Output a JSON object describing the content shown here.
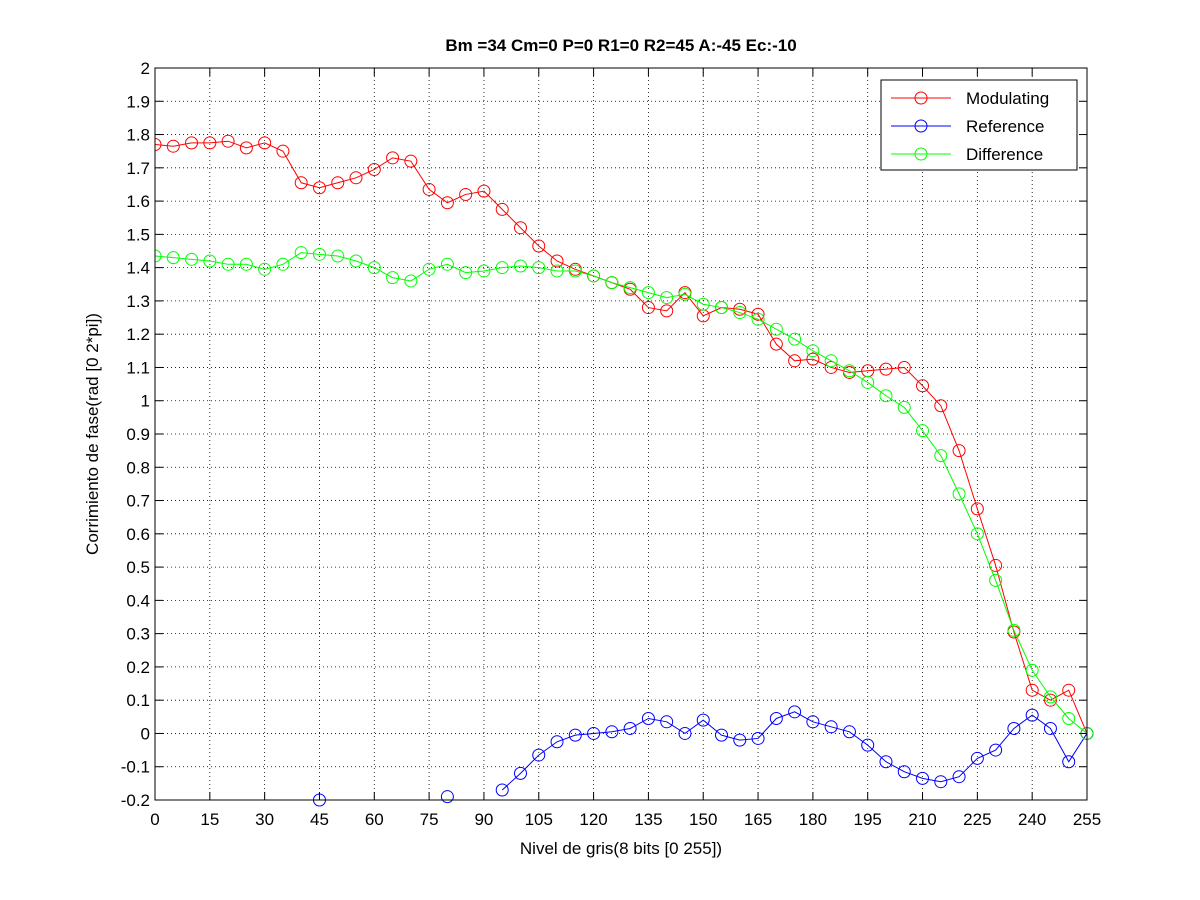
{
  "chart_data": {
    "type": "line",
    "title": "Bm =34  Cm=0  P=0  R1=0  R2=45  A:-45  Ec:-10",
    "xlabel": "Nivel de gris(8 bits [0 255])",
    "ylabel": "Corrimiento de fase(rad [0 2*pi])",
    "xlim": [
      0,
      255
    ],
    "ylim": [
      -0.2,
      2
    ],
    "xticks": [
      0,
      15,
      30,
      45,
      60,
      75,
      90,
      105,
      120,
      135,
      150,
      165,
      180,
      195,
      210,
      225,
      240,
      255
    ],
    "yticks": [
      -0.2,
      -0.1,
      0,
      0.1,
      0.2,
      0.3,
      0.4,
      0.5,
      0.6,
      0.7,
      0.8,
      0.9,
      1,
      1.1,
      1.2,
      1.3,
      1.4,
      1.5,
      1.6,
      1.7,
      1.8,
      1.9,
      2
    ],
    "ytick_labels": [
      "-0.2",
      "-0.1",
      "0",
      "0.1",
      "0.2",
      "0.3",
      "0.4",
      "0.5",
      "0.6",
      "0.7",
      "0.8",
      "0.9",
      "1",
      "1.1",
      "1.2",
      "1.3",
      "1.4",
      "1.5",
      "1.6",
      "1.7",
      "1.8",
      "1.9",
      "2"
    ],
    "grid": true,
    "legend_position": "top-right",
    "marker": "circle",
    "x": [
      0,
      5,
      10,
      15,
      20,
      25,
      30,
      35,
      40,
      45,
      50,
      55,
      60,
      65,
      70,
      75,
      80,
      85,
      90,
      95,
      100,
      105,
      110,
      115,
      120,
      125,
      130,
      135,
      140,
      145,
      150,
      155,
      160,
      165,
      170,
      175,
      180,
      185,
      190,
      195,
      200,
      205,
      210,
      215,
      220,
      225,
      230,
      235,
      240,
      245,
      250,
      255
    ],
    "series": [
      {
        "name": "Modulating",
        "color": "#ff0000",
        "values": [
          1.77,
          1.765,
          1.775,
          1.775,
          1.78,
          1.76,
          1.775,
          1.75,
          1.655,
          1.64,
          1.655,
          1.67,
          1.695,
          1.73,
          1.72,
          1.635,
          1.595,
          1.62,
          1.63,
          1.575,
          1.52,
          1.465,
          1.42,
          1.395,
          1.375,
          1.355,
          1.335,
          1.28,
          1.27,
          1.325,
          1.255,
          1.28,
          1.275,
          1.26,
          1.17,
          1.12,
          1.125,
          1.1,
          1.085,
          1.09,
          1.095,
          1.1,
          1.045,
          0.985,
          0.85,
          0.675,
          0.505,
          0.305,
          0.13,
          0.1,
          0.13,
          0.0
        ]
      },
      {
        "name": "Reference",
        "color": "#0000ff",
        "values": [
          null,
          null,
          null,
          null,
          null,
          null,
          null,
          null,
          null,
          -0.2,
          null,
          null,
          null,
          null,
          null,
          null,
          -0.19,
          null,
          null,
          -0.17,
          -0.12,
          -0.065,
          -0.025,
          -0.005,
          0.0,
          0.005,
          0.015,
          0.045,
          0.035,
          0.0,
          0.04,
          -0.005,
          -0.02,
          -0.015,
          0.045,
          0.065,
          0.035,
          0.02,
          0.005,
          -0.035,
          -0.085,
          -0.115,
          -0.135,
          -0.145,
          -0.13,
          -0.075,
          -0.05,
          0.015,
          0.055,
          0.015,
          -0.085,
          0.0
        ]
      },
      {
        "name": "Difference",
        "color": "#00ff00",
        "values": [
          1.435,
          1.43,
          1.425,
          1.42,
          1.41,
          1.41,
          1.395,
          1.41,
          1.445,
          1.44,
          1.435,
          1.42,
          1.4,
          1.37,
          1.36,
          1.395,
          1.41,
          1.385,
          1.39,
          1.4,
          1.405,
          1.4,
          1.39,
          1.39,
          1.375,
          1.355,
          1.34,
          1.325,
          1.31,
          1.32,
          1.29,
          1.28,
          1.265,
          1.245,
          1.215,
          1.185,
          1.15,
          1.12,
          1.09,
          1.055,
          1.015,
          0.98,
          0.91,
          0.835,
          0.72,
          0.6,
          0.46,
          0.31,
          0.19,
          0.11,
          0.045,
          0.0
        ]
      }
    ]
  }
}
